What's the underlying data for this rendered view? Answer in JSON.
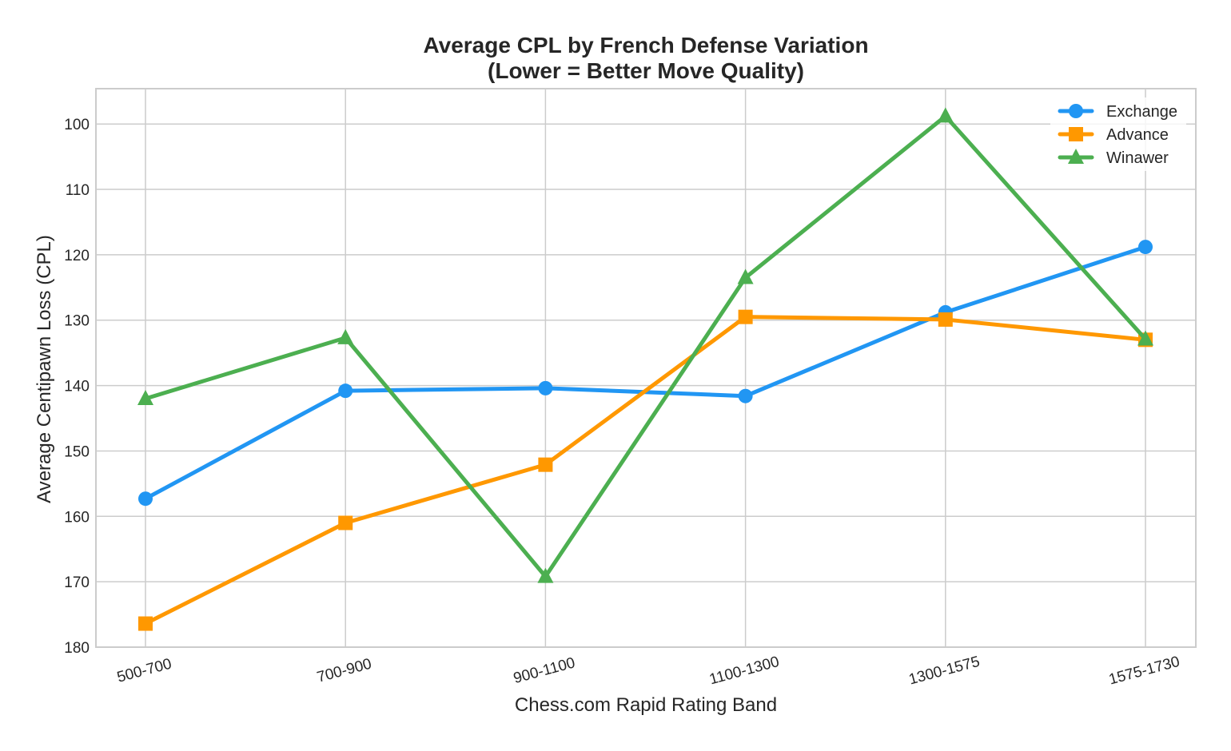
{
  "chart_data": {
    "type": "line",
    "title": [
      "Average CPL by French Defense Variation",
      "(Lower = Better Move Quality)"
    ],
    "xlabel": "Chess.com Rapid Rating Band",
    "ylabel": "Average Centipawn Loss (CPL)",
    "categories": [
      "500-700",
      "700-900",
      "900-1100",
      "1100-1300",
      "1300-1575",
      "1575-1730"
    ],
    "ylim": [
      180,
      94.6
    ],
    "y_inverted": true,
    "yticks": [
      100,
      110,
      120,
      130,
      140,
      150,
      160,
      170,
      180
    ],
    "grid": true,
    "legend_position": "top-right",
    "series": [
      {
        "name": "Exchange",
        "color": "#2196F3",
        "marker": "circle",
        "values": [
          157.3,
          140.8,
          140.4,
          141.6,
          128.8,
          118.8
        ]
      },
      {
        "name": "Advance",
        "color": "#FF9800",
        "marker": "square",
        "values": [
          176.4,
          161.0,
          152.1,
          129.5,
          129.9,
          133.0
        ]
      },
      {
        "name": "Winawer",
        "color": "#4CAF50",
        "marker": "triangle",
        "values": [
          142.0,
          132.7,
          169.2,
          123.5,
          98.8,
          132.9
        ]
      }
    ]
  }
}
